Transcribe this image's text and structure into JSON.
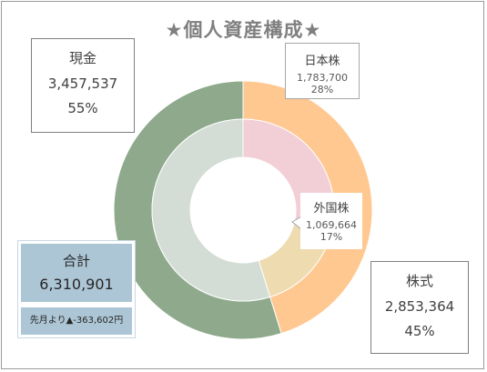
{
  "chart_data": {
    "type": "donut",
    "title": "★個人資産構成★",
    "outer_ring": [
      {
        "name": "株式",
        "value": 2853364,
        "percent": "45%",
        "color": "#ffc891"
      },
      {
        "name": "現金",
        "value": 3457537,
        "percent": "55%",
        "color": "#8ea98b"
      }
    ],
    "inner_ring": [
      {
        "name": "日本株",
        "value": 1783700,
        "percent": "28%",
        "color": "#f2cfd6"
      },
      {
        "name": "外国株",
        "value": 1069664,
        "percent": "17%",
        "color": "#eedcb0"
      },
      {
        "name": "現金",
        "value": 3457537,
        "percent": "55%",
        "color": "#d3ddd5"
      }
    ]
  },
  "labels": {
    "cash": {
      "name": "現金",
      "value": "3,457,537",
      "percent": "55%"
    },
    "stocks": {
      "name": "株式",
      "value": "2,853,364",
      "percent": "45%"
    },
    "japan": {
      "name": "日本株",
      "value": "1,783,700",
      "percent": "28%"
    },
    "foreign": {
      "name": "外国株",
      "value": "1,069,664",
      "percent": "17%"
    }
  },
  "total": {
    "label": "合計",
    "value": "6,310,901",
    "change": "先月より▲-363,602円"
  }
}
